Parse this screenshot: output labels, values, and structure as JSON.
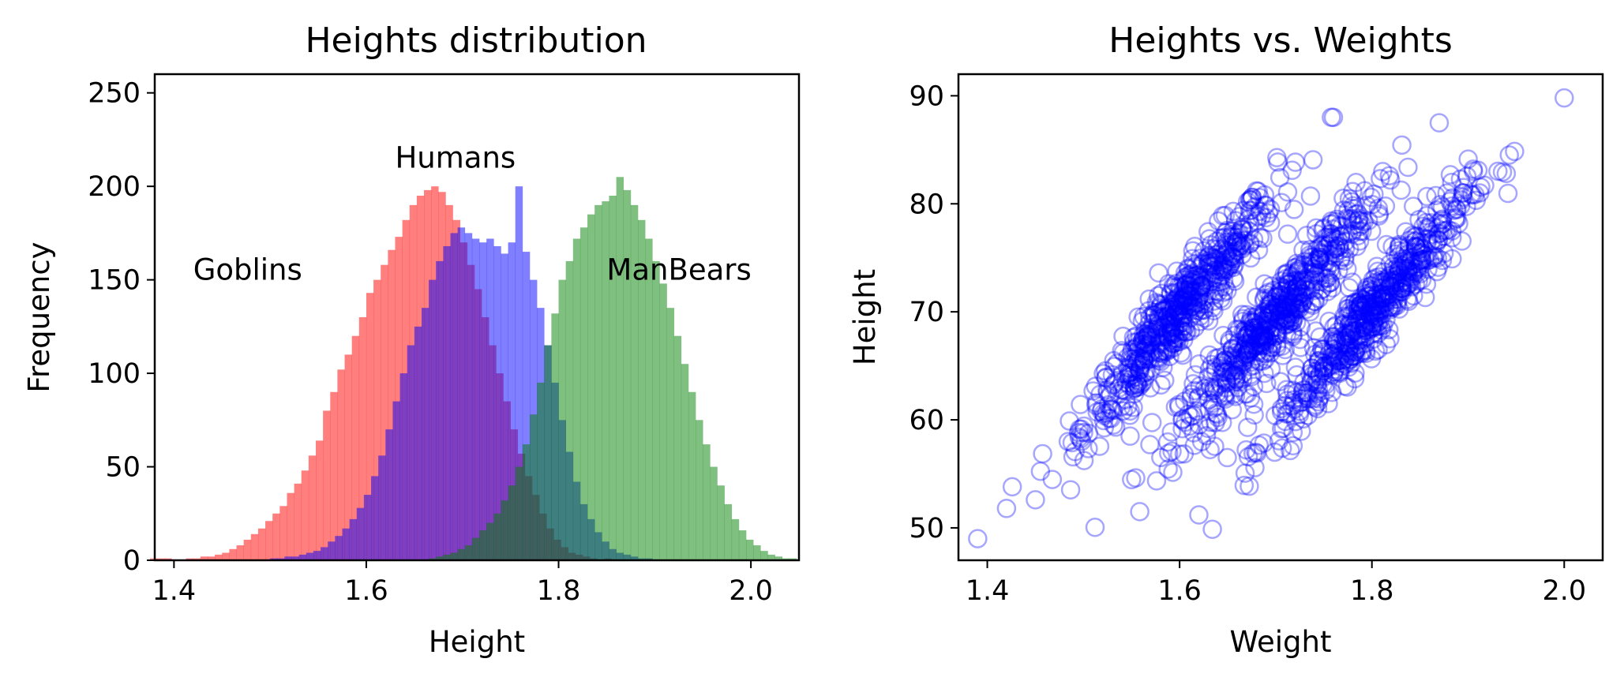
{
  "chart_data": [
    {
      "type": "bar",
      "title": "Heights distribution",
      "xlabel": "Height",
      "ylabel": "Frequency",
      "xlim": [
        1.38,
        2.05
      ],
      "ylim": [
        0,
        260
      ],
      "xticks": [
        "1.4",
        "1.6",
        "1.8",
        "2.0"
      ],
      "yticks": [
        "0",
        "50",
        "100",
        "150",
        "200",
        "250"
      ],
      "grid": false,
      "legend": "none",
      "bin_width": 0.0075,
      "annotations": [
        {
          "text": "Goblins",
          "x": 1.42,
          "y": 150
        },
        {
          "text": "Humans",
          "x": 1.63,
          "y": 210
        },
        {
          "text": "ManBears",
          "x": 1.85,
          "y": 150
        }
      ],
      "series": [
        {
          "color": "#ff0000",
          "opacity": 0.5,
          "x_start": 1.375,
          "values": [
            1,
            1,
            1,
            0,
            0,
            1,
            1,
            2,
            2,
            3,
            4,
            6,
            8,
            11,
            14,
            17,
            21,
            25,
            29,
            36,
            41,
            48,
            56,
            64,
            80,
            90,
            102,
            110,
            120,
            130,
            143,
            150,
            158,
            166,
            173,
            182,
            190,
            195,
            198,
            200,
            197,
            190,
            182,
            170,
            158,
            145,
            130,
            115,
            100,
            85,
            70,
            57,
            45,
            35,
            25,
            17,
            11,
            7,
            4,
            3,
            2,
            1,
            0,
            1
          ]
        },
        {
          "color": "#0000ff",
          "opacity": 0.5,
          "x_start": 1.5,
          "values": [
            1,
            1,
            2,
            2,
            3,
            4,
            5,
            7,
            10,
            13,
            17,
            22,
            28,
            35,
            45,
            56,
            70,
            85,
            100,
            115,
            125,
            135,
            150,
            160,
            168,
            175,
            178,
            175,
            172,
            170,
            172,
            168,
            164,
            170,
            200,
            165,
            150,
            135,
            115,
            95,
            75,
            58,
            42,
            30,
            22,
            15,
            10,
            6,
            4,
            3,
            2,
            1,
            1
          ]
        },
        {
          "color": "#008000",
          "opacity": 0.5,
          "x_start": 1.665,
          "values": [
            1,
            2,
            3,
            4,
            6,
            8,
            12,
            16,
            20,
            25,
            32,
            40,
            50,
            62,
            78,
            95,
            115,
            132,
            150,
            160,
            172,
            178,
            185,
            190,
            192,
            195,
            205,
            198,
            190,
            182,
            172,
            160,
            148,
            135,
            120,
            105,
            90,
            75,
            62,
            50,
            40,
            30,
            22,
            16,
            11,
            8,
            5,
            3,
            2,
            1,
            1
          ]
        }
      ]
    },
    {
      "type": "scatter",
      "title": "Heights vs. Weights",
      "xlabel": "Weight",
      "ylabel": "Height",
      "xlim": [
        1.37,
        2.04
      ],
      "ylim": [
        47,
        92
      ],
      "xticks": [
        "1.4",
        "1.6",
        "1.8",
        "2.0"
      ],
      "yticks": [
        "50",
        "60",
        "70",
        "80",
        "90"
      ],
      "grid": false,
      "legend": "none",
      "marker": {
        "shape": "open-circle",
        "color": "#0000ff",
        "opacity": 0.35
      },
      "clusters": [
        {
          "x_center": 1.6,
          "x_sd": 0.05,
          "slope": 105,
          "intercept": -98,
          "y_sd": 1.8,
          "n": 600
        },
        {
          "x_center": 1.7,
          "x_sd": 0.05,
          "slope": 105,
          "intercept": -109,
          "y_sd": 1.8,
          "n": 600
        },
        {
          "x_center": 1.8,
          "x_sd": 0.05,
          "slope": 105,
          "intercept": -119,
          "y_sd": 1.8,
          "n": 600
        }
      ],
      "extra_points": [
        [
          1.39,
          49
        ],
        [
          1.42,
          51.8
        ],
        [
          1.45,
          52.6
        ],
        [
          1.62,
          51.2
        ],
        [
          2.0,
          89.8
        ],
        [
          1.76,
          88
        ],
        [
          1.87,
          87.5
        ]
      ]
    }
  ]
}
